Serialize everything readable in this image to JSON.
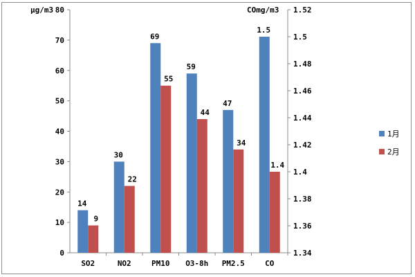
{
  "chart_data": {
    "type": "bar",
    "categories": [
      "SO2",
      "NO2",
      "PM10",
      "O3-8h",
      "PM2.5",
      "CO"
    ],
    "series": [
      {
        "name": "1月",
        "color": "#4f81bd",
        "values": [
          14,
          30,
          69,
          59,
          47,
          1.5
        ],
        "labels": [
          "14",
          "30",
          "69",
          "59",
          "47",
          "1.5"
        ]
      },
      {
        "name": "2月",
        "color": "#c0504d",
        "values": [
          9,
          22,
          55,
          44,
          34,
          1.4
        ],
        "labels": [
          "9",
          "22",
          "55",
          "44",
          "34",
          "1.4"
        ]
      }
    ],
    "secondary_axis_category": "CO",
    "y_left": {
      "label": "μg/m3",
      "min": 0,
      "max": 80,
      "step": 10,
      "ticks": [
        "0",
        "10",
        "20",
        "30",
        "40",
        "50",
        "60",
        "70",
        "80"
      ]
    },
    "y_right": {
      "label": "COmg/m3",
      "min": 1.34,
      "max": 1.52,
      "step": 0.02,
      "ticks": [
        "1.34",
        "1.36",
        "1.38",
        "1.4",
        "1.42",
        "1.44",
        "1.46",
        "1.48",
        "1.5",
        "1.52"
      ]
    },
    "legend_position": "right",
    "grid": false
  }
}
